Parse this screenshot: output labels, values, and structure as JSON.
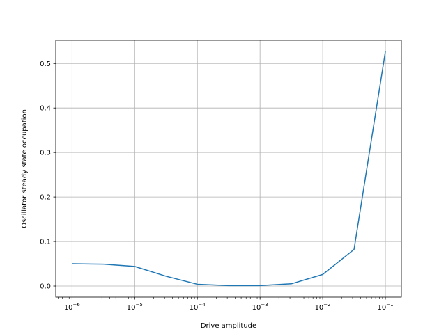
{
  "chart_data": {
    "type": "line",
    "title": "",
    "xlabel": "Drive amplitude",
    "ylabel": "Oscillator steady state occupation",
    "xscale": "log",
    "grid": true,
    "legend": "none",
    "xlim": [
      5.5e-07,
      0.18
    ],
    "ylim": [
      -0.025,
      0.552
    ],
    "xticks": [
      {
        "value": 1e-06,
        "base": "10",
        "exp": "−6"
      },
      {
        "value": 1e-05,
        "base": "10",
        "exp": "−5"
      },
      {
        "value": 0.0001,
        "base": "10",
        "exp": "−4"
      },
      {
        "value": 0.001,
        "base": "10",
        "exp": "−3"
      },
      {
        "value": 0.01,
        "base": "10",
        "exp": "−2"
      },
      {
        "value": 0.1,
        "base": "10",
        "exp": "−1"
      }
    ],
    "yticks": [
      {
        "value": 0.0,
        "label": "0.0"
      },
      {
        "value": 0.1,
        "label": "0.1"
      },
      {
        "value": 0.2,
        "label": "0.2"
      },
      {
        "value": 0.3,
        "label": "0.3"
      },
      {
        "value": 0.4,
        "label": "0.4"
      },
      {
        "value": 0.5,
        "label": "0.5"
      }
    ],
    "series": [
      {
        "color": "#1f77b4",
        "x": [
          1e-06,
          3.16e-06,
          1e-05,
          3.16e-05,
          0.0001,
          0.000316,
          0.001,
          0.00316,
          0.01,
          0.0316,
          0.1
        ],
        "y": [
          0.05,
          0.049,
          0.044,
          0.022,
          0.004,
          0.001,
          0.001,
          0.005,
          0.026,
          0.082,
          0.527
        ]
      }
    ]
  }
}
